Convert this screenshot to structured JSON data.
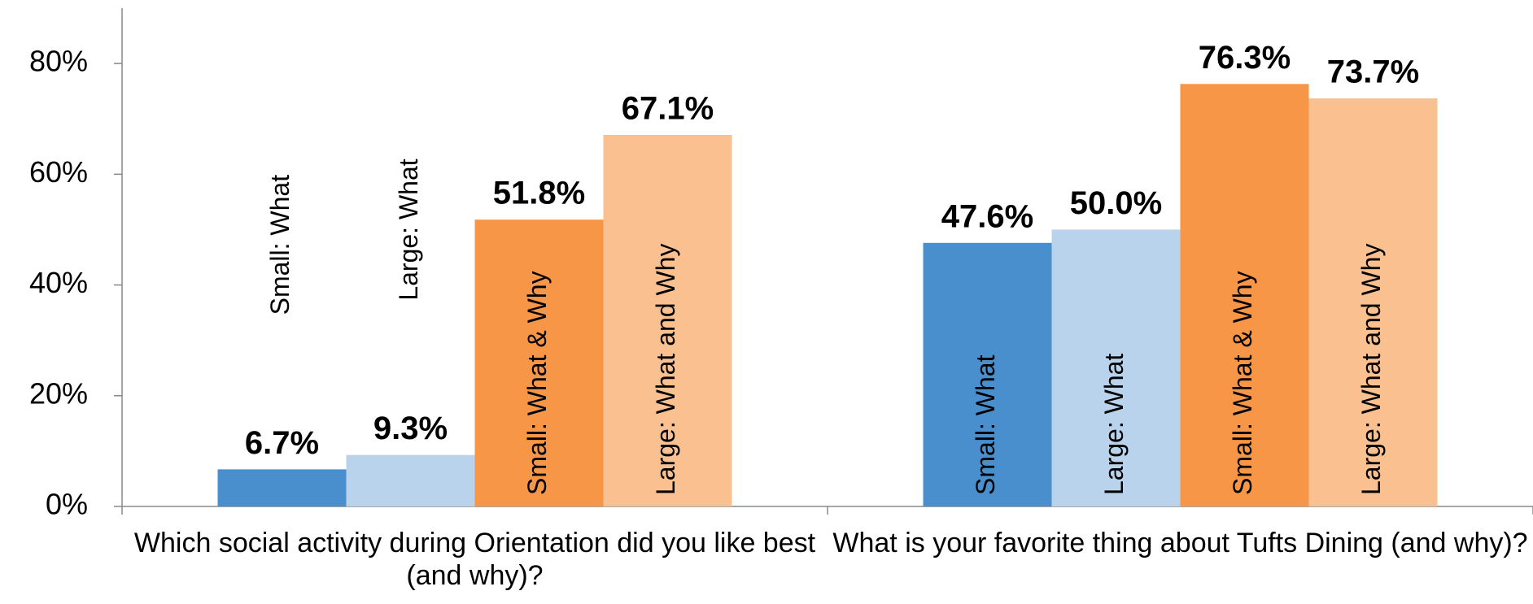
{
  "chart_data": {
    "type": "bar",
    "categories": [
      "Which social activity during Orientation did you like best (and why)?",
      "What is your favorite thing about Tufts Dining (and why)?"
    ],
    "series": [
      {
        "name": "Small: What",
        "color": "#4a8fcd",
        "values": [
          6.7,
          47.6
        ],
        "value_labels": [
          "6.7%",
          "47.6%"
        ]
      },
      {
        "name": "Large: What",
        "color": "#b9d3ec",
        "values": [
          9.3,
          50.0
        ],
        "value_labels": [
          "9.3%",
          "50.0%"
        ]
      },
      {
        "name": "Small: What & Why",
        "color": "#f79646",
        "values": [
          51.8,
          76.3
        ],
        "value_labels": [
          "51.8%",
          "76.3%"
        ]
      },
      {
        "name": "Large: What and Why",
        "color": "#fac08f",
        "values": [
          67.1,
          73.7
        ],
        "value_labels": [
          "67.1%",
          "73.7%"
        ]
      }
    ],
    "ylim": [
      0,
      90
    ],
    "yticks": [
      {
        "value": 0,
        "label": "0%"
      },
      {
        "value": 20,
        "label": "20%"
      },
      {
        "value": 40,
        "label": "40%"
      },
      {
        "value": 60,
        "label": "60%"
      },
      {
        "value": 80,
        "label": "80%"
      }
    ],
    "grid": false
  }
}
